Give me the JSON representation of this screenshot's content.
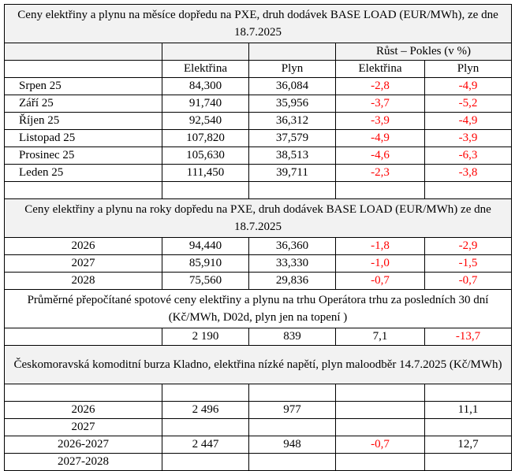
{
  "section1": {
    "title": "Ceny elektřiny a plynu na měsíce dopředu na PXE, druh dodávek BASE LOAD (EUR/MWh), ze dne 18.7.2025",
    "group_header": "Růst – Pokles (v %)",
    "col_headers": [
      "Elektřina",
      "Plyn",
      "Elektřina",
      "Plyn"
    ],
    "rows": [
      {
        "label": "Srpen 25",
        "e": "84,300",
        "p": "36,084",
        "de": "-2,8",
        "dp": "-4,9"
      },
      {
        "label": "Září 25",
        "e": "91,740",
        "p": "35,956",
        "de": "-3,7",
        "dp": "-5,2"
      },
      {
        "label": "Říjen 25",
        "e": "92,540",
        "p": "36,312",
        "de": "-3,9",
        "dp": "-4,9"
      },
      {
        "label": "Listopad 25",
        "e": "107,820",
        "p": "37,579",
        "de": "-4,9",
        "dp": "-3,9"
      },
      {
        "label": "Prosinec 25",
        "e": "105,630",
        "p": "38,513",
        "de": "-4,6",
        "dp": "-6,3"
      },
      {
        "label": "Leden 25",
        "e": "111,450",
        "p": "39,711",
        "de": "-2,3",
        "dp": "-3,8"
      }
    ]
  },
  "section2": {
    "title": "Ceny elektřiny a plynu na roky dopředu na PXE, druh dodávek BASE LOAD (EUR/MWh) ze dne 18.7.2025",
    "rows": [
      {
        "label": "2026",
        "e": "94,440",
        "p": "36,360",
        "de": "-1,8",
        "dp": "-2,9"
      },
      {
        "label": "2027",
        "e": "85,910",
        "p": "33,330",
        "de": "-1,0",
        "dp": "-1,5"
      },
      {
        "label": "2028",
        "e": "75,560",
        "p": "29,836",
        "de": "-0,7",
        "dp": "-0,7"
      }
    ]
  },
  "section3": {
    "title": "Průměrné přepočítané spotové ceny elektřiny a plynu na trhu Operátora trhu za posledních 30 dní (Kč/MWh, D02d, plyn jen na topení )",
    "row": {
      "label": "",
      "e": "2 190",
      "p": "839",
      "de": "7,1",
      "dp": "-13,7"
    }
  },
  "section4": {
    "title": "Českomoravská komoditní burza Kladno, elektřina nízké napětí, plyn maloodběr 14.7.2025 (Kč/MWh)",
    "rows": [
      {
        "label": "2026",
        "e": "2 496",
        "p": "977",
        "de": "",
        "dp": "11,1"
      },
      {
        "label": "2027",
        "e": "",
        "p": "",
        "de": "",
        "dp": ""
      },
      {
        "label": "2026-2027",
        "e": "2 447",
        "p": "948",
        "de": "-0,7",
        "dp": "12,7"
      },
      {
        "label": "2027-2028",
        "e": "",
        "p": "",
        "de": "",
        "dp": ""
      }
    ]
  },
  "colors": {
    "negative": "#ff0000",
    "text": "#000000",
    "shade": "#f2f2f2"
  }
}
